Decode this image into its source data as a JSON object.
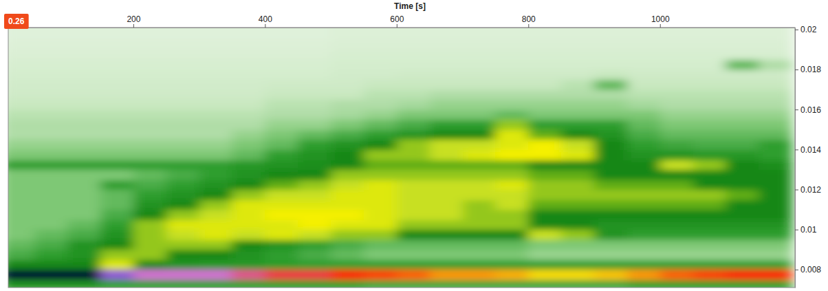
{
  "chart_data": {
    "type": "heatmap",
    "xlabel": "Time [s]",
    "annotations": [
      {
        "text": "0.26"
      }
    ],
    "xlim": [
      10,
      1205
    ],
    "xticks": [
      200,
      400,
      600,
      800,
      1000
    ],
    "ylim": [
      0.0071,
      0.0201
    ],
    "yticks": [
      0.008,
      0.01,
      0.012,
      0.014,
      0.016,
      0.018,
      0.02
    ],
    "color_range": [
      0,
      10
    ],
    "x": [
      25,
      75,
      125,
      175,
      225,
      275,
      325,
      375,
      425,
      475,
      525,
      575,
      625,
      675,
      725,
      775,
      825,
      875,
      925,
      975,
      1025,
      1075,
      1125,
      1175
    ],
    "y": [
      0.00725,
      0.00775,
      0.00825,
      0.00875,
      0.00925,
      0.00975,
      0.01025,
      0.01075,
      0.01125,
      0.01175,
      0.01225,
      0.01275,
      0.01325,
      0.01375,
      0.01425,
      0.01475,
      0.01525,
      0.01575,
      0.01625,
      0.01675,
      0.01725,
      0.01775,
      0.01825,
      0.01875,
      0.01925,
      0.01975,
      0.02025
    ],
    "z": [
      [
        5,
        5,
        5,
        4.5,
        4.5,
        4.5,
        4.5,
        4.5,
        4.5,
        4.5,
        4.5,
        4.2,
        4.2,
        4.2,
        4.2,
        4.2,
        4.2,
        4.2,
        4.2,
        4.5,
        4.5,
        4.5,
        4.5,
        4.5
      ],
      [
        10,
        10,
        10,
        9.2,
        9,
        9,
        9,
        8.8,
        8.6,
        8.6,
        8.4,
        8.2,
        8,
        7.6,
        7.6,
        7.4,
        7,
        7,
        7.2,
        7.6,
        8,
        8.2,
        8.4,
        8.4
      ],
      [
        5.5,
        5.5,
        5.5,
        6.5,
        5.5,
        5,
        4.8,
        4.8,
        4.6,
        4.5,
        4.5,
        4.5,
        4.5,
        4.5,
        4.5,
        4.5,
        4.5,
        4.5,
        4.5,
        4.5,
        4.5,
        4.5,
        4.5,
        4.5
      ],
      [
        4,
        4.5,
        5,
        6,
        6,
        5.5,
        5.5,
        5,
        4.5,
        4,
        3.5,
        3,
        3,
        3,
        3,
        3,
        2.5,
        2.5,
        2.5,
        2.5,
        2.5,
        2.5,
        2.5,
        2.5
      ],
      [
        3.5,
        4,
        5,
        5.5,
        6,
        6,
        6,
        5.5,
        5,
        4.5,
        4,
        3.5,
        3.5,
        3.5,
        3.5,
        3.5,
        3,
        3,
        3,
        3,
        3,
        3,
        3,
        3
      ],
      [
        3,
        3.5,
        4,
        5,
        6,
        6.2,
        6.5,
        6.2,
        6.5,
        6.2,
        6,
        6,
        5.5,
        5.5,
        5.5,
        5.5,
        6.2,
        6,
        5,
        4.5,
        4.5,
        4.5,
        4.5,
        4.5
      ],
      [
        3,
        3,
        3.5,
        4.5,
        6,
        6.5,
        6.5,
        6.5,
        6.5,
        6.8,
        6.5,
        6.5,
        6,
        6,
        6,
        6,
        5.5,
        5.5,
        5,
        5,
        5,
        5,
        5,
        5
      ],
      [
        3,
        3,
        3,
        4,
        5.5,
        6,
        6.2,
        6.5,
        6.8,
        6.8,
        6.8,
        6.5,
        6.2,
        6.2,
        6,
        6,
        5.5,
        5.5,
        5.5,
        5.5,
        5.5,
        5.5,
        5.5,
        5.5
      ],
      [
        3,
        3,
        3,
        3.5,
        5,
        5.5,
        6,
        6.5,
        6.5,
        6.5,
        6.5,
        6.5,
        6.2,
        6.2,
        6,
        6.2,
        5.8,
        5.8,
        5.8,
        5.8,
        5.8,
        5.8,
        5.5,
        5.5
      ],
      [
        3,
        3,
        3,
        3.5,
        4.5,
        5,
        5.5,
        6,
        6.2,
        6.2,
        6.5,
        6.5,
        6.2,
        6.2,
        6.2,
        6.2,
        6,
        6,
        6,
        6,
        6,
        6,
        5.8,
        5.5
      ],
      [
        3,
        3,
        3,
        4.5,
        4,
        4.5,
        5,
        5.5,
        5.8,
        6,
        6.2,
        6.5,
        6.2,
        6.2,
        6.2,
        6.5,
        6,
        6,
        5.8,
        5.8,
        5.8,
        5.5,
        5.5,
        5.5
      ],
      [
        3,
        3,
        3,
        3,
        3.5,
        4,
        4.5,
        5,
        5.5,
        5.5,
        6,
        6,
        6,
        6,
        6,
        6,
        5.8,
        5.8,
        5.5,
        5.5,
        5.5,
        5.5,
        5.5,
        5.5
      ],
      [
        4.5,
        4.5,
        4.5,
        4.5,
        4.5,
        4.5,
        4.5,
        4.8,
        5,
        5.2,
        5.5,
        5.8,
        5.8,
        5.8,
        5.8,
        5.8,
        5.5,
        5.5,
        5.5,
        5.5,
        6.2,
        6,
        5.5,
        5.2
      ],
      [
        3,
        3,
        3,
        3,
        3,
        3,
        3,
        3.5,
        4.5,
        5,
        5.5,
        6,
        6,
        6.2,
        6.5,
        6.8,
        6.8,
        6.5,
        5.5,
        5,
        5,
        4.8,
        4.8,
        4.5
      ],
      [
        2.5,
        2.5,
        2.5,
        2.5,
        2.5,
        2.5,
        2.5,
        3,
        3.5,
        4.5,
        5,
        5.5,
        6,
        6.2,
        6.2,
        6.5,
        6.8,
        6.2,
        5.5,
        4.5,
        4.2,
        4,
        4,
        4.5
      ],
      [
        2,
        2,
        2,
        2,
        2,
        2,
        2,
        2.5,
        3,
        3.5,
        4,
        4.5,
        5,
        5.5,
        5.5,
        6.5,
        5.8,
        5.5,
        5,
        4,
        3.5,
        3.5,
        3.5,
        3.5
      ],
      [
        2,
        2,
        2,
        2,
        2,
        2,
        2,
        2,
        2.5,
        2.5,
        3,
        3.5,
        4,
        4.5,
        4.5,
        6,
        4.5,
        4.5,
        4.5,
        3.5,
        3,
        3,
        3,
        3
      ],
      [
        1.8,
        1.8,
        1.8,
        1.8,
        1.8,
        1.8,
        1.8,
        1.8,
        2,
        2,
        2.2,
        2.5,
        3,
        3,
        3,
        3.5,
        3,
        3,
        3,
        3,
        2.5,
        2.5,
        2.5,
        2.5
      ],
      [
        1.5,
        1.5,
        1.5,
        1.5,
        1.5,
        1.5,
        1.5,
        1.5,
        1.8,
        1.8,
        2,
        2,
        2.2,
        2.5,
        2.5,
        2.5,
        2.5,
        2.5,
        2.5,
        2.2,
        2,
        2,
        2,
        2
      ],
      [
        1.3,
        1.3,
        1.3,
        1.3,
        1.3,
        1.3,
        1.3,
        1.3,
        1.5,
        1.5,
        1.5,
        1.8,
        1.8,
        2,
        2,
        2,
        2,
        2,
        2,
        1.8,
        1.8,
        1.8,
        1.8,
        1.8
      ],
      [
        1.2,
        1.2,
        1.2,
        1.2,
        1.2,
        1.2,
        1.2,
        1.2,
        1.3,
        1.3,
        1.3,
        1.5,
        1.5,
        1.5,
        1.5,
        1.5,
        1.5,
        1.8,
        3.5,
        1.5,
        1.5,
        1.5,
        1.5,
        1.5
      ],
      [
        1.1,
        1.1,
        1.1,
        1.1,
        1.1,
        1.1,
        1.1,
        1.1,
        1.1,
        1.1,
        1.2,
        1.2,
        1.3,
        1.3,
        1.3,
        1.3,
        1.3,
        1.3,
        1.5,
        1.3,
        1.3,
        1.3,
        1.3,
        1.3
      ],
      [
        1,
        1,
        1,
        1,
        1,
        1,
        1,
        1,
        1,
        1,
        1.1,
        1.1,
        1.1,
        1.1,
        1.1,
        1.1,
        1.1,
        1.1,
        1.1,
        1.1,
        1.1,
        1.1,
        3.5,
        2
      ],
      [
        0.9,
        0.9,
        0.9,
        0.9,
        0.9,
        0.9,
        0.9,
        0.9,
        0.9,
        0.9,
        1,
        1,
        1,
        1,
        1,
        1,
        1,
        1,
        1,
        1,
        1,
        1,
        1,
        1
      ],
      [
        0.8,
        0.8,
        0.8,
        0.8,
        0.8,
        0.8,
        0.8,
        0.8,
        0.8,
        0.8,
        0.9,
        0.9,
        0.9,
        0.9,
        0.9,
        0.9,
        0.9,
        0.9,
        0.9,
        0.9,
        0.9,
        0.9,
        0.9,
        0.9
      ],
      [
        0.7,
        0.7,
        0.7,
        0.7,
        0.7,
        0.7,
        0.7,
        0.7,
        0.7,
        0.7,
        0.8,
        0.8,
        0.8,
        0.8,
        0.8,
        0.8,
        0.8,
        0.8,
        0.8,
        0.8,
        0.8,
        0.8,
        0.8,
        0.8
      ],
      [
        0.7,
        0.7,
        0.7,
        0.7,
        0.7,
        0.7,
        0.7,
        0.7,
        0.7,
        0.7,
        0.8,
        0.8,
        0.8,
        0.8,
        0.8,
        0.8,
        0.8,
        0.8,
        0.8,
        0.8,
        0.8,
        0.8,
        0.8,
        0.8
      ]
    ]
  }
}
